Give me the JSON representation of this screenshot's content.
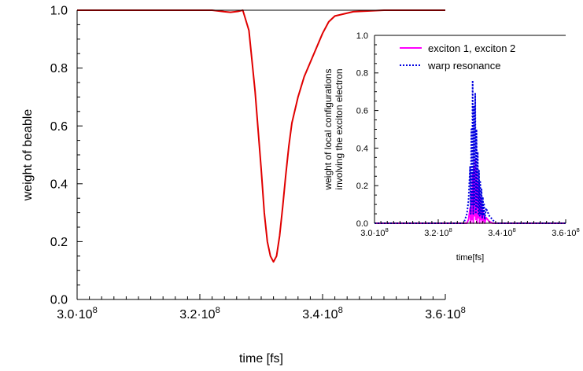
{
  "chart_data": [
    {
      "type": "line",
      "xlabel": "time [fs]",
      "ylabel": "weight of beable",
      "xlim": [
        300000000.0,
        360000000.0
      ],
      "ylim": [
        0.0,
        1.0
      ],
      "xticks": [
        {
          "value": 300000000.0,
          "mantissa": "3.0·10",
          "exp": "8"
        },
        {
          "value": 320000000.0,
          "mantissa": "3.2·10",
          "exp": "8"
        },
        {
          "value": 340000000.0,
          "mantissa": "3.4·10",
          "exp": "8"
        },
        {
          "value": 360000000.0,
          "mantissa": "3.6·10",
          "exp": "8"
        }
      ],
      "yticks": [
        "0.0",
        "0.2",
        "0.4",
        "0.6",
        "0.8",
        "1.0"
      ],
      "series": [
        {
          "color": "#e00000",
          "x": [
            300000000.0,
            305000000.0,
            310000000.0,
            315000000.0,
            318000000.0,
            320000000.0,
            322000000.0,
            324000000.0,
            325000000.0,
            326200000.0,
            327000000.0,
            328000000.0,
            329000000.0,
            330000000.0,
            330500000.0,
            331000000.0,
            331500000.0,
            332000000.0,
            332500000.0,
            333000000.0,
            333500000.0,
            334000000.0,
            334500000.0,
            335000000.0,
            336000000.0,
            337000000.0,
            338000000.0,
            339000000.0,
            340000000.0,
            341000000.0,
            342000000.0,
            345000000.0,
            350000000.0,
            360000000.0
          ],
          "y": [
            1.0,
            1.0,
            1.0,
            1.0,
            1.0,
            1.0,
            1.0,
            0.995,
            0.993,
            0.996,
            1.0,
            0.93,
            0.72,
            0.45,
            0.3,
            0.2,
            0.15,
            0.13,
            0.15,
            0.22,
            0.32,
            0.43,
            0.53,
            0.61,
            0.7,
            0.77,
            0.82,
            0.87,
            0.92,
            0.96,
            0.98,
            0.995,
            1.0,
            1.0
          ]
        }
      ]
    },
    {
      "type": "line",
      "xlabel": "time[fs]",
      "ylabel_lines": [
        "weight of local configurations",
        "involving the exciton electron"
      ],
      "xlim": [
        300000000.0,
        360000000.0
      ],
      "ylim": [
        0.0,
        1.0
      ],
      "xticks": [
        {
          "value": 300000000.0,
          "mantissa": "3.0·10",
          "exp": "8"
        },
        {
          "value": 320000000.0,
          "mantissa": "3.2·10",
          "exp": "8"
        },
        {
          "value": 340000000.0,
          "mantissa": "3.4·10",
          "exp": "8"
        },
        {
          "value": 360000000.0,
          "mantissa": "3.6·10",
          "exp": "8"
        }
      ],
      "yticks": [
        "0.0",
        "0.2",
        "0.4",
        "0.6",
        "0.8",
        "1.0"
      ],
      "legend": {
        "placement": "top-right"
      },
      "series": [
        {
          "name": "exciton 1, exciton 2",
          "color": "#ff00ff",
          "style": "solid",
          "x": [
            300000000.0,
            329000000.0,
            329500000.0,
            330000000.0,
            330200000.0,
            330400000.0,
            330600000.0,
            330800000.0,
            331000000.0,
            331200000.0,
            331400000.0,
            331600000.0,
            331800000.0,
            332000000.0,
            332200000.0,
            332400000.0,
            332600000.0,
            332800000.0,
            333000000.0,
            333200000.0,
            333400000.0,
            333600000.0,
            333800000.0,
            334000000.0,
            334200000.0,
            334400000.0,
            334600000.0,
            335000000.0,
            335500000.0,
            336000000.0,
            337000000.0,
            360000000.0
          ],
          "y": [
            0.0,
            0.0,
            0.02,
            0.08,
            0.0,
            0.16,
            0.02,
            0.26,
            0.0,
            0.3,
            0.04,
            0.34,
            0.02,
            0.28,
            0.0,
            0.22,
            0.03,
            0.18,
            0.0,
            0.14,
            0.02,
            0.1,
            0.0,
            0.07,
            0.01,
            0.05,
            0.0,
            0.03,
            0.02,
            0.01,
            0.0,
            0.0
          ]
        },
        {
          "name": "warp resonance",
          "color": "#0000e0",
          "style": "dotted",
          "x": [
            300000000.0,
            328000000.0,
            329000000.0,
            329500000.0,
            330000000.0,
            330200000.0,
            330400000.0,
            330600000.0,
            330800000.0,
            331000000.0,
            331200000.0,
            331400000.0,
            331600000.0,
            331800000.0,
            332000000.0,
            332200000.0,
            332400000.0,
            332600000.0,
            332800000.0,
            333000000.0,
            333200000.0,
            333400000.0,
            333600000.0,
            333800000.0,
            334000000.0,
            334200000.0,
            334400000.0,
            334600000.0,
            335000000.0,
            335500000.0,
            336000000.0,
            337000000.0,
            338000000.0,
            360000000.0
          ],
          "y": [
            0.0,
            0.0,
            0.05,
            0.12,
            0.3,
            0.05,
            0.5,
            0.1,
            0.76,
            0.05,
            0.62,
            0.1,
            0.69,
            0.05,
            0.5,
            0.08,
            0.38,
            0.05,
            0.28,
            0.04,
            0.22,
            0.05,
            0.18,
            0.03,
            0.14,
            0.04,
            0.1,
            0.02,
            0.08,
            0.06,
            0.04,
            0.02,
            0.0,
            0.0
          ]
        }
      ]
    }
  ]
}
